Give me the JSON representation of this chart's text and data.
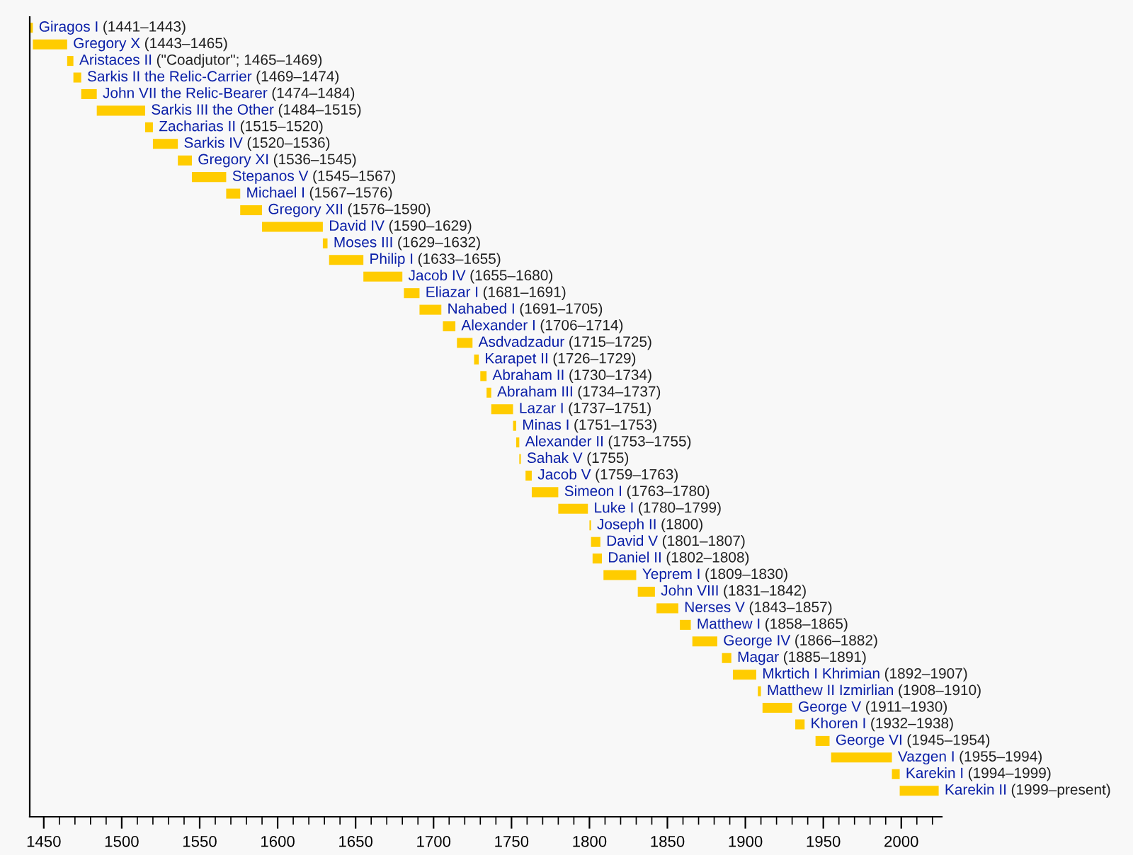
{
  "chart_data": {
    "type": "bar",
    "orientation": "horizontal",
    "color": "#ffcc00",
    "tick_labels": "x",
    "grid": false,
    "categories": [
      "Giragos I",
      "Gregory X",
      "Aristaces II",
      "Sarkis II the Relic-Carrier",
      "John VII the Relic-Bearer",
      "Sarkis III the Other",
      "Zacharias II",
      "Sarkis IV",
      "Gregory XI",
      "Stepanos V",
      "Michael I",
      "Gregory XII",
      "David IV",
      "Moses III",
      "Philip I",
      "Jacob IV",
      "Eliazar I",
      "Nahabed I",
      "Alexander I",
      "Asdvadzadur",
      "Karapet II",
      "Abraham II",
      "Abraham III",
      "Lazar I",
      "Minas I",
      "Alexander II",
      "Sahak V",
      "Jacob V",
      "Simeon I",
      "Luke I",
      "Joseph II",
      "David V",
      "Daniel II",
      "Yeprem I",
      "John VIII",
      "Nerses V",
      "Matthew I",
      "George IV",
      "Magar",
      "Mkrtich I Khrimian",
      "Matthew II Izmirlian",
      "George V",
      "Khoren I",
      "George VI",
      "Vazgen I",
      "Karekin I",
      "Karekin II"
    ],
    "base": [
      1441,
      1443,
      1465,
      1469,
      1474,
      1484,
      1515,
      1520,
      1536,
      1545,
      1567,
      1576,
      1590,
      1629,
      1633,
      1655,
      1681,
      1691,
      1706,
      1715,
      1726,
      1730,
      1734,
      1737,
      1751,
      1753,
      1755,
      1759,
      1763,
      1780,
      1800,
      1801,
      1802,
      1809,
      1831,
      1843,
      1858,
      1866,
      1885,
      1892,
      1908,
      1911,
      1932,
      1945,
      1955,
      1994,
      1999
    ],
    "values": [
      2,
      22,
      4,
      5,
      10,
      31,
      5,
      16,
      9,
      22,
      9,
      14,
      39,
      3,
      22,
      25,
      10,
      14,
      8,
      10,
      3,
      4,
      3,
      14,
      2,
      2,
      1,
      4,
      17,
      19,
      1,
      6,
      6,
      21,
      11,
      14,
      7,
      16,
      6,
      15,
      2,
      19,
      6,
      9,
      39,
      5,
      25
    ],
    "annotations": [
      "(1441–1443)",
      "(1443–1465)",
      "(\"Coadjutor\"; 1465–1469)",
      "(1469–1474)",
      "(1474–1484)",
      "(1484–1515)",
      "(1515–1520)",
      "(1520–1536)",
      "(1536–1545)",
      "(1545–1567)",
      "(1567–1576)",
      "(1576–1590)",
      "(1590–1629)",
      "(1629–1632)",
      "(1633–1655)",
      "(1655–1680)",
      "(1681–1691)",
      "(1691–1705)",
      "(1706–1714)",
      "(1715–1725)",
      "(1726–1729)",
      "(1730–1734)",
      "(1734–1737)",
      "(1737–1751)",
      "(1751–1753)",
      "(1753–1755)",
      "(1755)",
      "(1759–1763)",
      "(1763–1780)",
      "(1780–1799)",
      "(1800)",
      "(1801–1807)",
      "(1802–1808)",
      "(1809–1830)",
      "(1831–1842)",
      "(1843–1857)",
      "(1858–1865)",
      "(1866–1882)",
      "(1885–1891)",
      "(1892–1907)",
      "(1908–1910)",
      "(1911–1930)",
      "(1932–1938)",
      "(1945–1954)",
      "(1955–1994)",
      "(1994–1999)",
      "(1999–present)"
    ],
    "xlim": [
      1441,
      2026
    ],
    "xticks": [
      1450,
      {
        "value": 1460,
        "label": null
      },
      {
        "value": 1470,
        "label": null
      },
      {
        "value": 1480,
        "label": null
      },
      {
        "value": 1490,
        "label": null
      },
      1500,
      {
        "value": 1510,
        "label": null
      },
      {
        "value": 1520,
        "label": null
      },
      {
        "value": 1530,
        "label": null
      },
      {
        "value": 1540,
        "label": null
      },
      1550,
      {
        "value": 1560,
        "label": null
      },
      {
        "value": 1570,
        "label": null
      },
      {
        "value": 1580,
        "label": null
      },
      {
        "value": 1590,
        "label": null
      },
      1600,
      {
        "value": 1610,
        "label": null
      },
      {
        "value": 1620,
        "label": null
      },
      {
        "value": 1630,
        "label": null
      },
      {
        "value": 1640,
        "label": null
      },
      1650,
      {
        "value": 1660,
        "label": null
      },
      {
        "value": 1670,
        "label": null
      },
      {
        "value": 1680,
        "label": null
      },
      {
        "value": 1690,
        "label": null
      },
      1700,
      {
        "value": 1710,
        "label": null
      },
      {
        "value": 1720,
        "label": null
      },
      {
        "value": 1730,
        "label": null
      },
      {
        "value": 1740,
        "label": null
      },
      1750,
      {
        "value": 1760,
        "label": null
      },
      {
        "value": 1770,
        "label": null
      },
      {
        "value": 1780,
        "label": null
      },
      {
        "value": 1790,
        "label": null
      },
      1800,
      {
        "value": 1810,
        "label": null
      },
      {
        "value": 1820,
        "label": null
      },
      {
        "value": 1830,
        "label": null
      },
      {
        "value": 1840,
        "label": null
      },
      1850,
      {
        "value": 1860,
        "label": null
      },
      {
        "value": 1870,
        "label": null
      },
      {
        "value": 1880,
        "label": null
      },
      {
        "value": 1890,
        "label": null
      },
      1900,
      {
        "value": 1910,
        "label": null
      },
      {
        "value": 1920,
        "label": null
      },
      {
        "value": 1930,
        "label": null
      },
      {
        "value": 1940,
        "label": null
      },
      1950,
      {
        "value": 1960,
        "label": null
      },
      {
        "value": 1970,
        "label": null
      },
      {
        "value": 1980,
        "label": null
      },
      {
        "value": 1990,
        "label": null
      },
      2000,
      {
        "value": 2010,
        "label": null
      },
      {
        "value": 2020,
        "label": null
      }
    ]
  }
}
